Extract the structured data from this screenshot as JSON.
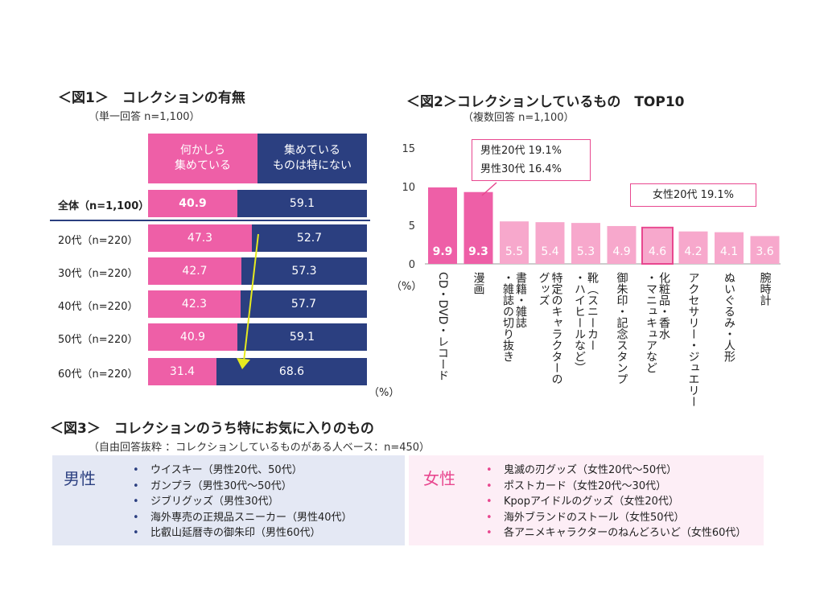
{
  "colors": {
    "pink": "#ee5fa7",
    "navy": "#2b3f80",
    "light_pink": "#f7a8cc",
    "arrow": "#e6ea1f",
    "outline": "#e8478f",
    "male_bg": "#e4e8f4",
    "female_bg": "#fdeef6"
  },
  "fig1": {
    "title": "＜図1＞　コレクションの有無",
    "subtitle": "（単一回答 n=1,100）",
    "col_headers": [
      "何かしら\n集めている",
      "集めている\nものは特にない"
    ],
    "unit": "（%）",
    "chart_data": {
      "type": "bar",
      "orientation": "horizontal-stacked",
      "categories": [
        "全体（n=1,100）",
        "20代（n=220）",
        "30代（n=220）",
        "40代（n=220）",
        "50代（n=220）",
        "60代（n=220）"
      ],
      "series": [
        {
          "name": "何かしら集めている",
          "values": [
            40.9,
            47.3,
            42.7,
            42.3,
            40.9,
            31.4
          ]
        },
        {
          "name": "集めているものは特にない",
          "values": [
            59.1,
            52.7,
            57.3,
            57.7,
            59.1,
            68.6
          ]
        }
      ]
    }
  },
  "fig2": {
    "title": "＜図2＞コレクションしているもの　TOP10",
    "subtitle": "（複数回答 n=1,100）",
    "unit": "（%）",
    "callouts": {
      "male": [
        "男性20代  19.1%",
        "男性30代  16.4%"
      ],
      "female": [
        "女性20代  19.1%"
      ]
    },
    "chart_data": {
      "type": "bar",
      "categories": [
        "CD・DVD・レコード",
        "漫画",
        "書籍・雑誌\n・雑誌の切り抜き",
        "特定のキャラクターの\nグッズ",
        "靴（スニーカー\n・ハイヒールなど）",
        "御朱印・記念スタンプ",
        "化粧品・香水\n・マニュキュアなど",
        "アクセサリー・ジュエリー",
        "ぬいぐるみ・人形",
        "腕時計"
      ],
      "values": [
        9.9,
        9.3,
        5.5,
        5.4,
        5.3,
        4.9,
        4.6,
        4.2,
        4.1,
        3.6
      ],
      "yticks": [
        0,
        5,
        10,
        15
      ],
      "ylim": [
        0,
        15
      ]
    }
  },
  "fig3": {
    "title": "＜図3＞　コレクションのうち特にお気に入りのもの",
    "subtitle": "（自由回答抜粋 ：コレクションしているものがある人ベース：n=450）",
    "male": {
      "label": "男性",
      "items": [
        "ウイスキー（男性20代、50代）",
        "ガンプラ（男性30代〜50代）",
        "ジブリグッズ（男性30代）",
        "海外専売の正規品スニーカー（男性40代）",
        "比叡山延暦寺の御朱印（男性60代）"
      ]
    },
    "female": {
      "label": "女性",
      "items": [
        "鬼滅の刃グッズ（女性20代〜50代）",
        "ポストカード（女性20代〜30代）",
        "Kpopアイドルのグッズ（女性20代）",
        "海外ブランドのストール（女性50代）",
        "各アニメキャラクターのねんどろいど（女性60代）"
      ]
    }
  }
}
